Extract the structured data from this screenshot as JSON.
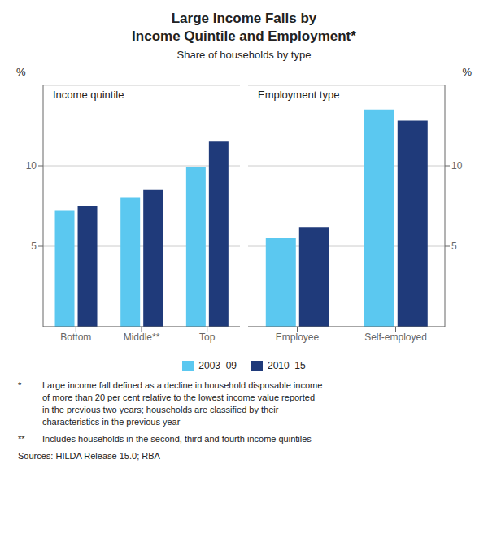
{
  "title": "Large Income Falls by\nIncome Quintile and Employment*",
  "subtitle": "Share of households by type",
  "notes": [
    [
      "*",
      "Large income fall defined as a decline in household disposable income\nof more than 20 per cent relative to the lowest income value reported\nin the previous two years; households are classified by their\ncharacteristics in the previous year"
    ],
    [
      "**",
      "Includes households in the second, third and fourth income quintiles"
    ]
  ],
  "source": "Sources: HILDA Release 15.0; RBA",
  "chart_data": [
    {
      "type": "bar",
      "annotations": [
        "Income quintile"
      ],
      "ylabel": "%",
      "categories": [
        "Bottom",
        "Middle**",
        "Top"
      ],
      "series": [
        {
          "name": "2003–09",
          "color": "#5BC8F0",
          "values": [
            7.2,
            8.0,
            9.9
          ]
        },
        {
          "name": "2010–15",
          "color": "#1F3A7A",
          "values": [
            7.5,
            8.5,
            11.5
          ]
        }
      ],
      "ylim": [
        0,
        15
      ],
      "yticks": [
        5,
        10
      ],
      "grid": true,
      "legend": "bottom"
    },
    {
      "type": "bar",
      "annotations": [
        "Employment type"
      ],
      "ylabel": "%",
      "categories": [
        "Employee",
        "Self-employed"
      ],
      "series": [
        {
          "name": "2003–09",
          "color": "#5BC8F0",
          "values": [
            5.5,
            13.5
          ]
        },
        {
          "name": "2010–15",
          "color": "#1F3A7A",
          "values": [
            6.2,
            12.8
          ]
        }
      ],
      "ylim": [
        0,
        15
      ],
      "yticks": [
        5,
        10
      ],
      "grid": true
    }
  ]
}
